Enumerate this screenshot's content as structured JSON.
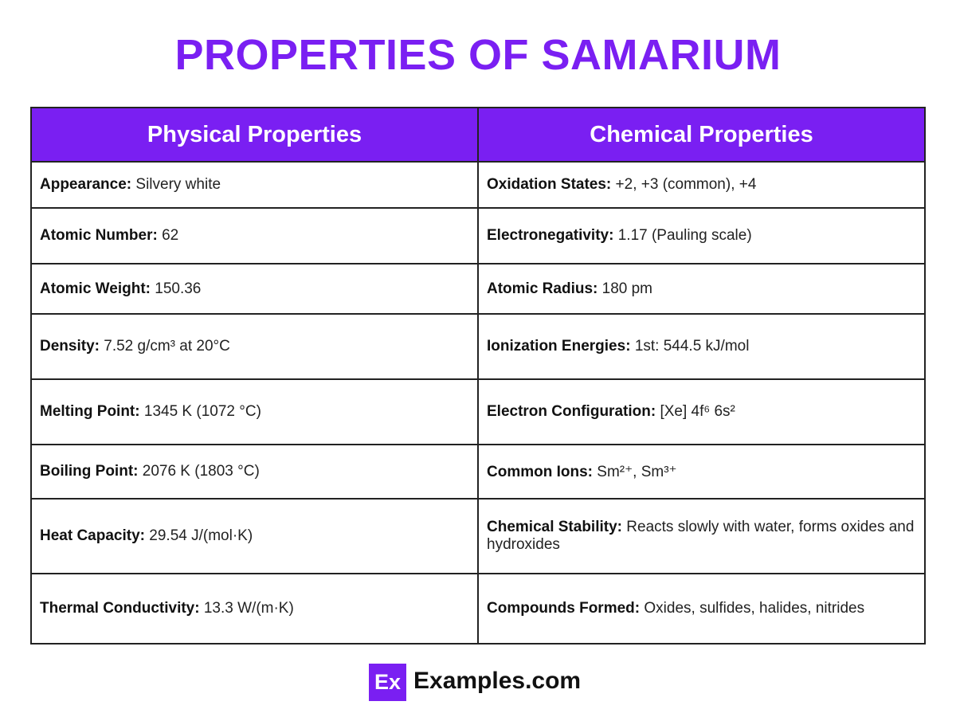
{
  "header": {
    "title": "PROPERTIES OF SAMARIUM"
  },
  "table": {
    "columns": [
      "Physical Properties",
      "Chemical Properties"
    ],
    "rows": [
      [
        {
          "label": "Appearance:",
          "value": "Silvery white"
        },
        {
          "label": "Oxidation States:",
          "value": "+2, +3 (common), +4"
        }
      ],
      [
        {
          "label": "Atomic Number:",
          "value": "62"
        },
        {
          "label": "Electronegativity:",
          "value": "1.17 (Pauling scale)"
        }
      ],
      [
        {
          "label": "Atomic Weight:",
          "value": "150.36"
        },
        {
          "label": "Atomic Radius:",
          "value": "180 pm"
        }
      ],
      [
        {
          "label": "Density:",
          "value": "7.52 g/cm³ at 20°C"
        },
        {
          "label": "Ionization Energies:",
          "value": "1st: 544.5 kJ/mol"
        }
      ],
      [
        {
          "label": "Melting Point:",
          "value": "1345 K (1072 °C)"
        },
        {
          "label": "Electron Configuration:",
          "value": "[Xe] 4f⁶ 6s²"
        }
      ],
      [
        {
          "label": "Boiling Point:",
          "value": "2076 K (1803 °C)"
        },
        {
          "label": "Common Ions:",
          "value": "Sm²⁺, Sm³⁺"
        }
      ],
      [
        {
          "label": "Heat Capacity:",
          "value": "29.54 J/(mol·K)"
        },
        {
          "label": "Chemical Stability:",
          "value": "Reacts slowly with water, forms oxides and hydroxides"
        }
      ],
      [
        {
          "label": "Thermal Conductivity:",
          "value": "13.3 W/(m·K)"
        },
        {
          "label": "Compounds Formed:",
          "value": "Oxides, sulfides, halides, nitrides"
        }
      ]
    ]
  },
  "footer": {
    "logo": "Ex",
    "site": "Examples.com"
  }
}
